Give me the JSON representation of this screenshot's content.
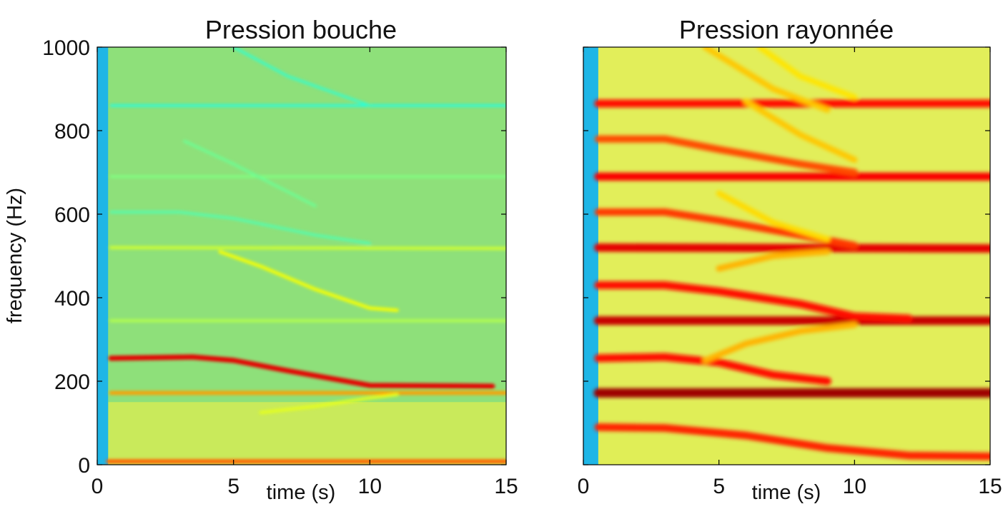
{
  "chart_data": [
    {
      "type": "heatmap",
      "title": "Pression bouche",
      "xlabel": "time (s)",
      "ylabel": "frequency (Hz)",
      "xlim": [
        0,
        15
      ],
      "ylim": [
        0,
        1000
      ],
      "xticks": [
        "0",
        "5",
        "10",
        "15"
      ],
      "yticks": [
        "0",
        "200",
        "400",
        "600",
        "800",
        "1000"
      ],
      "colormap": "jet",
      "background_color": "#8ee07a",
      "onset_time": 0.4,
      "tracks": [
        {
          "points": [
            [
              0.4,
              8
            ],
            [
              15,
              8
            ]
          ],
          "intensity": 0.78
        },
        {
          "points": [
            [
              0.5,
              255
            ],
            [
              3.5,
              258
            ],
            [
              5,
              250
            ],
            [
              7,
              225
            ],
            [
              10,
              190
            ],
            [
              14.5,
              188
            ]
          ],
          "intensity": 0.9
        },
        {
          "points": [
            [
              0.5,
              172
            ],
            [
              15,
              172
            ]
          ],
          "intensity": 0.72
        },
        {
          "points": [
            [
              6,
              125
            ],
            [
              8,
              140
            ],
            [
              10,
              160
            ],
            [
              11,
              168
            ]
          ],
          "intensity": 0.6
        },
        {
          "points": [
            [
              0.5,
              345
            ],
            [
              15,
              345
            ]
          ],
          "intensity": 0.55
        },
        {
          "points": [
            [
              0.5,
              520
            ],
            [
              15,
              518
            ]
          ],
          "intensity": 0.58
        },
        {
          "points": [
            [
              4.5,
              510
            ],
            [
              6,
              475
            ],
            [
              8,
              420
            ],
            [
              10,
              375
            ],
            [
              11,
              370
            ]
          ],
          "intensity": 0.62
        },
        {
          "points": [
            [
              0.5,
              690
            ],
            [
              15,
              690
            ]
          ],
          "intensity": 0.5
        },
        {
          "points": [
            [
              0.5,
              605
            ],
            [
              3,
              605
            ],
            [
              5,
              590
            ],
            [
              8,
              550
            ],
            [
              10,
              530
            ]
          ],
          "intensity": 0.45
        },
        {
          "points": [
            [
              3.2,
              775
            ],
            [
              5,
              720
            ],
            [
              8,
              620
            ]
          ],
          "intensity": 0.48
        },
        {
          "points": [
            [
              0.5,
              860
            ],
            [
              15,
              860
            ]
          ],
          "intensity": 0.4
        },
        {
          "points": [
            [
              5,
              1000
            ],
            [
              7,
              930
            ],
            [
              10,
              860
            ]
          ],
          "intensity": 0.42
        }
      ]
    },
    {
      "type": "heatmap",
      "title": "Pression rayonnée",
      "xlabel": "time (s)",
      "ylabel": "",
      "xlim": [
        0,
        15
      ],
      "ylim": [
        0,
        1000
      ],
      "xticks": [
        "0",
        "5",
        "10",
        "15"
      ],
      "yticks": [],
      "colormap": "jet",
      "background_color": "#e2ee5a",
      "onset_time": 0.55,
      "tracks": [
        {
          "points": [
            [
              0.55,
              172
            ],
            [
              15,
              172
            ]
          ],
          "intensity": 0.97
        },
        {
          "points": [
            [
              0.55,
              345
            ],
            [
              15,
              345
            ]
          ],
          "intensity": 0.93
        },
        {
          "points": [
            [
              0.55,
              520
            ],
            [
              15,
              518
            ]
          ],
          "intensity": 0.9
        },
        {
          "points": [
            [
              0.55,
              690
            ],
            [
              15,
              690
            ]
          ],
          "intensity": 0.88
        },
        {
          "points": [
            [
              0.55,
              865
            ],
            [
              15,
              865
            ]
          ],
          "intensity": 0.86
        },
        {
          "points": [
            [
              0.55,
              255
            ],
            [
              3,
              258
            ],
            [
              5,
              245
            ],
            [
              7,
              215
            ],
            [
              9,
              200
            ]
          ],
          "intensity": 0.86
        },
        {
          "points": [
            [
              0.55,
              430
            ],
            [
              3,
              430
            ],
            [
              5,
              415
            ],
            [
              8,
              385
            ],
            [
              10,
              355
            ],
            [
              12,
              350
            ]
          ],
          "intensity": 0.86
        },
        {
          "points": [
            [
              0.55,
              605
            ],
            [
              3,
              605
            ],
            [
              5,
              585
            ],
            [
              8,
              550
            ],
            [
              10,
              525
            ]
          ],
          "intensity": 0.82
        },
        {
          "points": [
            [
              0.55,
              780
            ],
            [
              3,
              780
            ],
            [
              5,
              755
            ],
            [
              8,
              720
            ],
            [
              10,
              700
            ]
          ],
          "intensity": 0.8
        },
        {
          "points": [
            [
              0.55,
              90
            ],
            [
              3,
              88
            ],
            [
              6,
              70
            ],
            [
              9,
              40
            ],
            [
              12,
              22
            ],
            [
              15,
              20
            ]
          ],
          "intensity": 0.84
        },
        {
          "points": [
            [
              4.5,
              250
            ],
            [
              6,
              290
            ],
            [
              8,
              320
            ],
            [
              10,
              335
            ]
          ],
          "intensity": 0.7
        },
        {
          "points": [
            [
              5,
              470
            ],
            [
              7,
              500
            ],
            [
              9,
              510
            ]
          ],
          "intensity": 0.7
        },
        {
          "points": [
            [
              4.5,
              1000
            ],
            [
              7,
              900
            ],
            [
              9,
              850
            ]
          ],
          "intensity": 0.68
        },
        {
          "points": [
            [
              6,
              870
            ],
            [
              8,
              790
            ],
            [
              10,
              730
            ]
          ],
          "intensity": 0.68
        },
        {
          "points": [
            [
              5,
              650
            ],
            [
              7,
              580
            ],
            [
              9,
              540
            ]
          ],
          "intensity": 0.66
        },
        {
          "points": [
            [
              6.5,
              1000
            ],
            [
              8,
              930
            ],
            [
              10,
              880
            ]
          ],
          "intensity": 0.65
        }
      ]
    }
  ]
}
